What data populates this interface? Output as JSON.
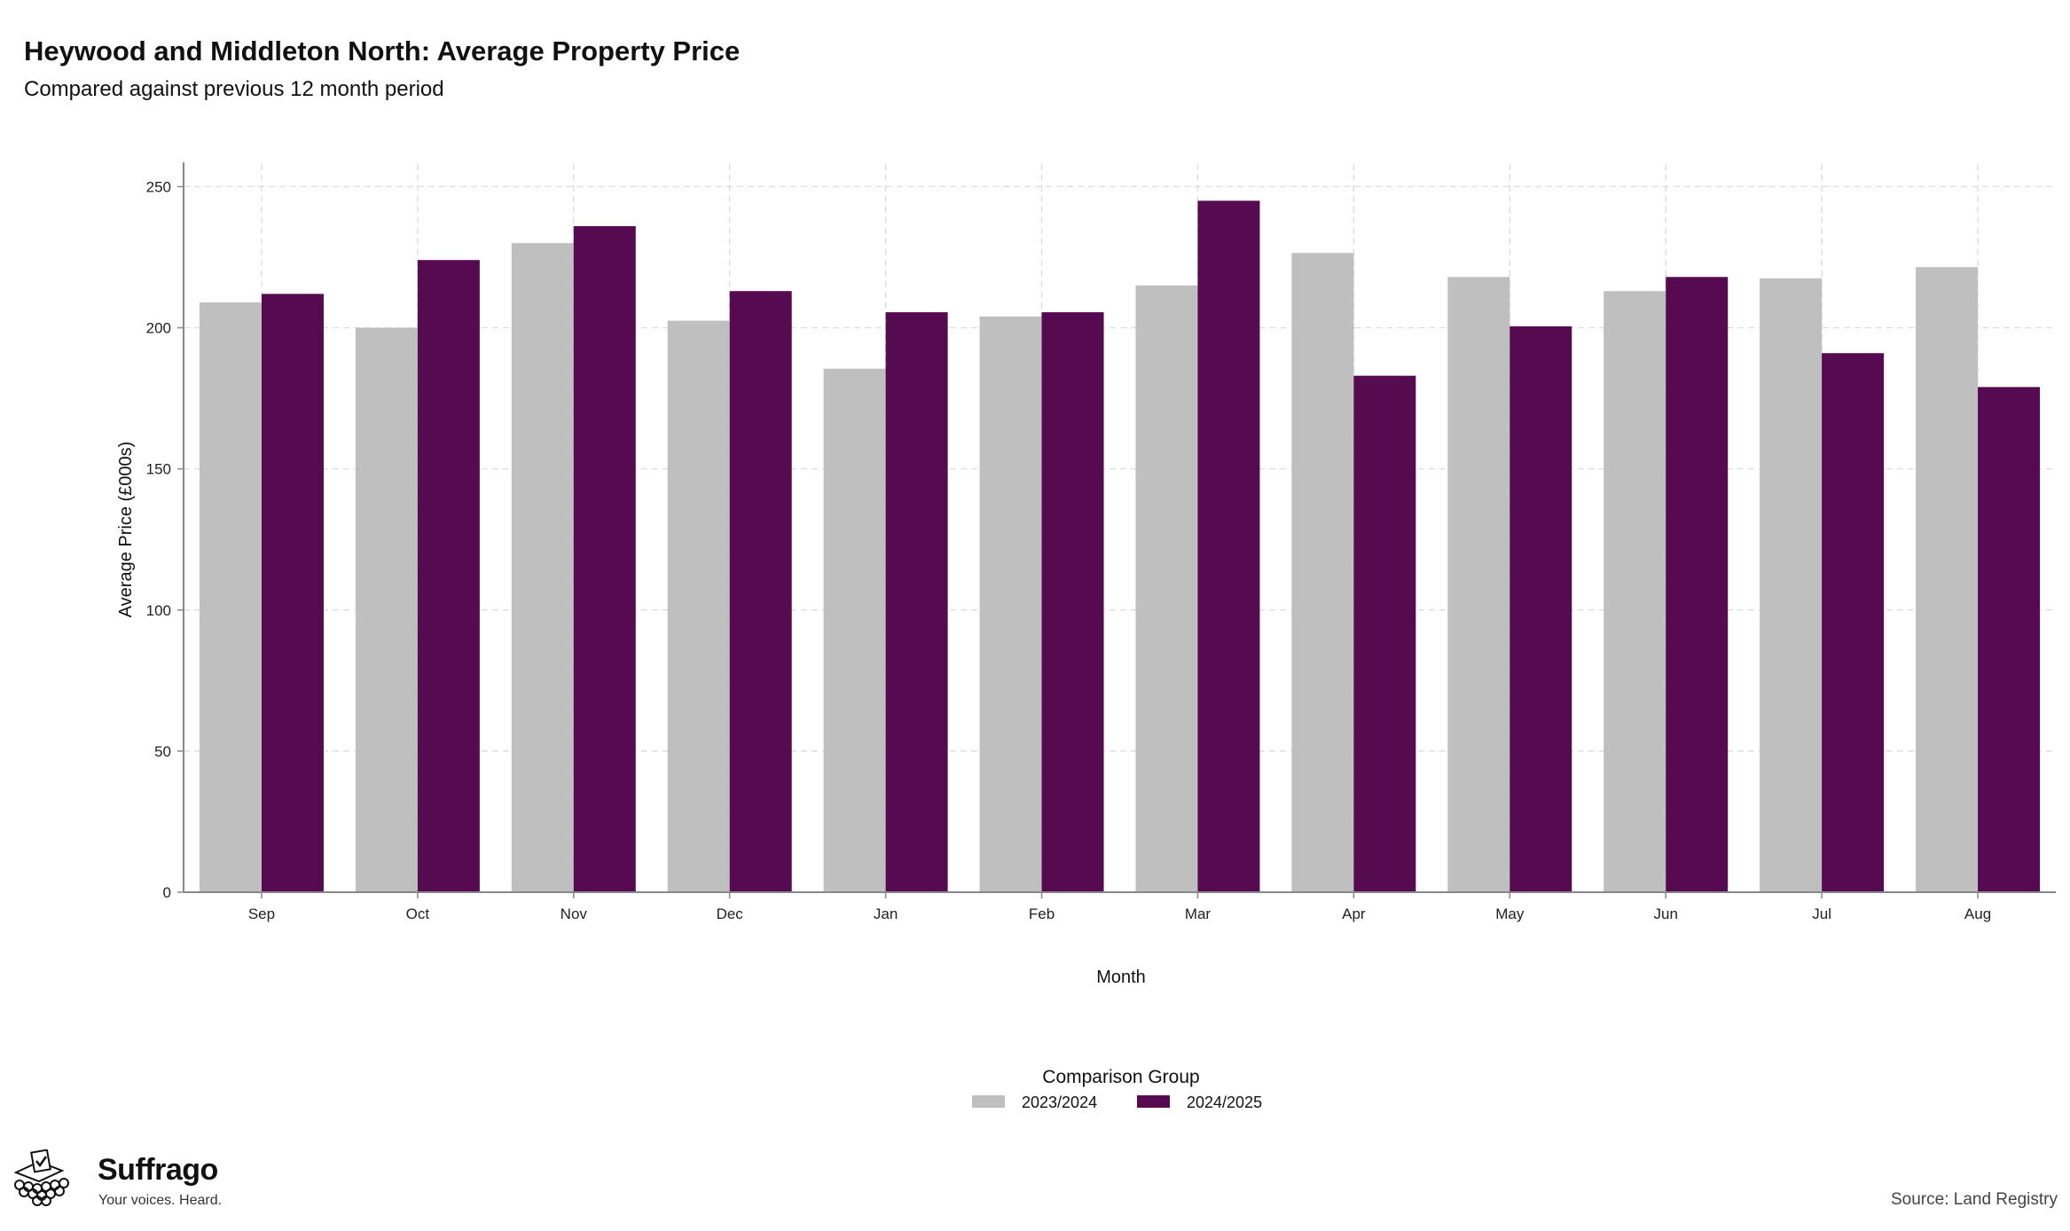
{
  "header": {
    "title": "Heywood and Middleton North: Average Property Price",
    "subtitle": "Compared against previous 12 month period"
  },
  "chart_data": {
    "type": "bar",
    "title": "Heywood and Middleton North: Average Property Price",
    "subtitle": "Compared against previous 12 month period",
    "xlabel": "Month",
    "ylabel": "Average Price (£000s)",
    "ylim": [
      0,
      258
    ],
    "yticks": [
      0,
      50,
      100,
      150,
      200,
      250
    ],
    "grid": true,
    "legend_title": "Comparison Group",
    "legend_position": "bottom",
    "categories": [
      "Sep",
      "Oct",
      "Nov",
      "Dec",
      "Jan",
      "Feb",
      "Mar",
      "Apr",
      "May",
      "Jun",
      "Jul",
      "Aug"
    ],
    "series": [
      {
        "name": "2023/2024",
        "color": "#bfbfbf",
        "values": [
          209,
          200,
          230,
          202.5,
          185.5,
          204,
          215,
          226.5,
          218,
          213,
          217.5,
          221.5
        ]
      },
      {
        "name": "2024/2025",
        "color": "#560b51",
        "values": [
          212,
          224,
          236,
          213,
          205.5,
          205.5,
          245,
          183,
          200.5,
          218,
          191,
          179
        ]
      }
    ]
  },
  "footer": {
    "brand_name": "Suffrago",
    "brand_tagline": "Your voices. Heard.",
    "source": "Source: Land Registry"
  }
}
